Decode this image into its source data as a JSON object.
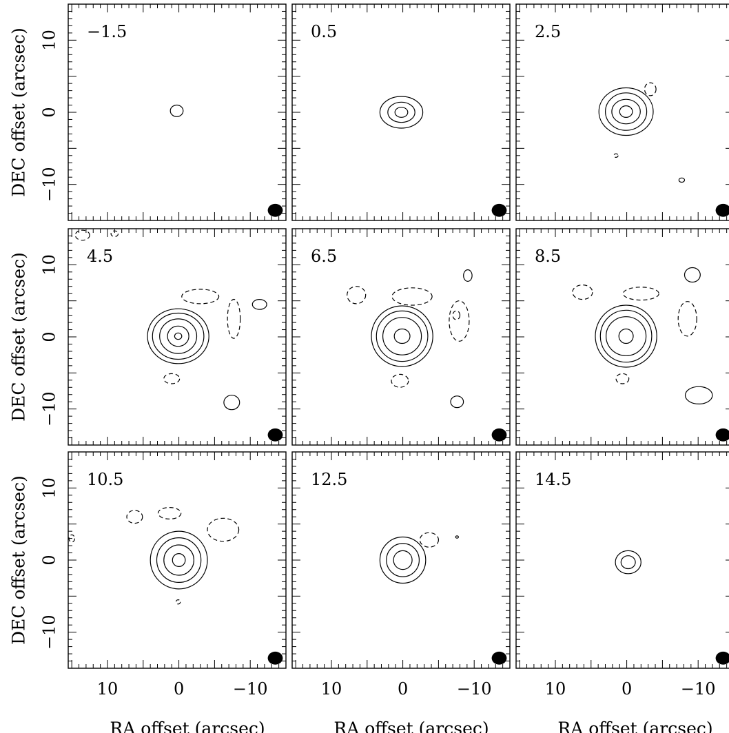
{
  "chart_data": {
    "type": "contour-channel-map",
    "xlabel": "RA offset (arcsec)",
    "ylabel": "DEC offset (arcsec)",
    "xlim": [
      15.5,
      -15
    ],
    "ylim": [
      -15,
      15
    ],
    "xticks": [
      10,
      0,
      -10
    ],
    "yticks": [
      10,
      0,
      -10
    ],
    "tick_labels_x": [
      "10",
      "0",
      "−10"
    ],
    "tick_labels_y": [
      "10",
      "0",
      "−10"
    ],
    "beam": {
      "x": -13.5,
      "y": -13.6,
      "major": 2.1,
      "minor": 1.8
    },
    "panels": [
      {
        "label": "−1.5",
        "contours": [
          {
            "x": 0.3,
            "y": 0.2,
            "rx": 0.9,
            "ry": 0.8,
            "level": "positive"
          }
        ]
      },
      {
        "label": "0.5",
        "contours": [
          {
            "x": 0.2,
            "y": 0.0,
            "rx": 3.0,
            "ry": 2.2,
            "level": "positive"
          },
          {
            "x": 0.2,
            "y": 0.0,
            "rx": 1.9,
            "ry": 1.4,
            "level": "positive"
          },
          {
            "x": 0.2,
            "y": 0.0,
            "rx": 0.9,
            "ry": 0.7,
            "level": "positive"
          }
        ]
      },
      {
        "label": "2.5",
        "contours": [
          {
            "x": 0.1,
            "y": 0.1,
            "rx": 3.8,
            "ry": 3.3,
            "level": "positive"
          },
          {
            "x": 0.1,
            "y": 0.1,
            "rx": 2.9,
            "ry": 2.6,
            "level": "positive"
          },
          {
            "x": 0.1,
            "y": 0.1,
            "rx": 2.0,
            "ry": 1.7,
            "level": "positive"
          },
          {
            "x": 0.1,
            "y": 0.1,
            "rx": 0.9,
            "ry": 0.8,
            "level": "positive"
          },
          {
            "x": -3.3,
            "y": 3.2,
            "rx": 0.8,
            "ry": 0.9,
            "level": "negative"
          },
          {
            "x": 1.5,
            "y": -6.0,
            "rx": 0.3,
            "ry": 0.25,
            "level": "negative"
          },
          {
            "x": -7.7,
            "y": -9.4,
            "rx": 0.4,
            "ry": 0.3,
            "level": "positive"
          }
        ]
      },
      {
        "label": "4.5",
        "contours": [
          {
            "x": 0.1,
            "y": 0.1,
            "rx": 4.3,
            "ry": 3.8,
            "level": "positive"
          },
          {
            "x": 0.1,
            "y": 0.1,
            "rx": 3.6,
            "ry": 3.2,
            "level": "positive"
          },
          {
            "x": 0.1,
            "y": 0.1,
            "rx": 2.6,
            "ry": 2.4,
            "level": "positive"
          },
          {
            "x": 0.1,
            "y": 0.1,
            "rx": 1.5,
            "ry": 1.4,
            "level": "positive"
          },
          {
            "x": 0.1,
            "y": 0.1,
            "rx": 0.5,
            "ry": 0.45,
            "level": "positive"
          },
          {
            "x": -3.0,
            "y": 5.6,
            "rx": 2.6,
            "ry": 1.0,
            "level": "negative"
          },
          {
            "x": -7.7,
            "y": 2.5,
            "rx": 0.9,
            "ry": 2.7,
            "level": "negative"
          },
          {
            "x": 1.0,
            "y": -5.8,
            "rx": 1.1,
            "ry": 0.7,
            "level": "negative"
          },
          {
            "x": -11.3,
            "y": 4.5,
            "rx": 1.0,
            "ry": 0.7,
            "level": "positive"
          },
          {
            "x": -7.4,
            "y": -9.1,
            "rx": 1.1,
            "ry": 1.0,
            "level": "positive"
          },
          {
            "x": 13.5,
            "y": 14.1,
            "rx": 1.0,
            "ry": 0.7,
            "level": "negative"
          },
          {
            "x": 9.0,
            "y": 14.3,
            "rx": 0.5,
            "ry": 0.4,
            "level": "negative"
          }
        ]
      },
      {
        "label": "6.5",
        "contours": [
          {
            "x": 0.1,
            "y": 0.1,
            "rx": 4.3,
            "ry": 4.2,
            "level": "positive"
          },
          {
            "x": 0.1,
            "y": 0.1,
            "rx": 3.6,
            "ry": 3.5,
            "level": "positive"
          },
          {
            "x": 0.1,
            "y": 0.1,
            "rx": 2.7,
            "ry": 2.6,
            "level": "positive"
          },
          {
            "x": 0.1,
            "y": 0.1,
            "rx": 1.1,
            "ry": 1.0,
            "level": "positive"
          },
          {
            "x": -1.3,
            "y": 5.6,
            "rx": 2.8,
            "ry": 1.2,
            "level": "negative"
          },
          {
            "x": 6.5,
            "y": 5.8,
            "rx": 1.3,
            "ry": 1.2,
            "level": "negative"
          },
          {
            "x": -7.9,
            "y": 2.2,
            "rx": 1.4,
            "ry": 2.8,
            "level": "negative"
          },
          {
            "x": -7.5,
            "y": 3.0,
            "rx": 0.5,
            "ry": 0.6,
            "level": "negative"
          },
          {
            "x": 0.4,
            "y": -6.1,
            "rx": 1.2,
            "ry": 0.9,
            "level": "negative"
          },
          {
            "x": -9.1,
            "y": 8.5,
            "rx": 0.6,
            "ry": 0.8,
            "level": "positive"
          },
          {
            "x": -7.6,
            "y": -9.0,
            "rx": 0.9,
            "ry": 0.8,
            "level": "positive"
          }
        ]
      },
      {
        "label": "8.5",
        "contours": [
          {
            "x": 0.1,
            "y": 0.1,
            "rx": 4.3,
            "ry": 4.3,
            "level": "positive"
          },
          {
            "x": 0.1,
            "y": 0.1,
            "rx": 3.6,
            "ry": 3.6,
            "level": "positive"
          },
          {
            "x": 0.1,
            "y": 0.1,
            "rx": 2.8,
            "ry": 2.7,
            "level": "positive"
          },
          {
            "x": 0.1,
            "y": 0.1,
            "rx": 1.0,
            "ry": 1.0,
            "level": "positive"
          },
          {
            "x": -2.0,
            "y": 6.0,
            "rx": 2.5,
            "ry": 0.9,
            "level": "negative"
          },
          {
            "x": 6.2,
            "y": 6.2,
            "rx": 1.4,
            "ry": 1.0,
            "level": "negative"
          },
          {
            "x": -8.5,
            "y": 2.5,
            "rx": 1.3,
            "ry": 2.4,
            "level": "negative"
          },
          {
            "x": 0.6,
            "y": -5.8,
            "rx": 0.9,
            "ry": 0.7,
            "level": "negative"
          },
          {
            "x": -9.2,
            "y": 8.6,
            "rx": 1.1,
            "ry": 1.0,
            "level": "positive"
          },
          {
            "x": -10.1,
            "y": -8.1,
            "rx": 1.9,
            "ry": 1.2,
            "level": "positive"
          }
        ]
      },
      {
        "label": "10.5",
        "contours": [
          {
            "x": 0.0,
            "y": 0.0,
            "rx": 4.0,
            "ry": 4.0,
            "level": "positive"
          },
          {
            "x": 0.0,
            "y": 0.0,
            "rx": 3.1,
            "ry": 3.1,
            "level": "positive"
          },
          {
            "x": 0.0,
            "y": 0.0,
            "rx": 2.1,
            "ry": 2.1,
            "level": "positive"
          },
          {
            "x": 0.0,
            "y": 0.0,
            "rx": 0.9,
            "ry": 0.9,
            "level": "positive"
          },
          {
            "x": 6.2,
            "y": 6.0,
            "rx": 1.1,
            "ry": 0.9,
            "level": "negative"
          },
          {
            "x": 1.3,
            "y": 6.5,
            "rx": 1.6,
            "ry": 0.8,
            "level": "negative"
          },
          {
            "x": -6.2,
            "y": 4.2,
            "rx": 2.2,
            "ry": 1.6,
            "level": "negative"
          },
          {
            "x": 0.1,
            "y": -5.8,
            "rx": 0.3,
            "ry": 0.3,
            "level": "negative"
          },
          {
            "x": 15.0,
            "y": 3.0,
            "rx": 0.4,
            "ry": 0.5,
            "level": "negative"
          }
        ]
      },
      {
        "label": "12.5",
        "contours": [
          {
            "x": 0.0,
            "y": 0.0,
            "rx": 3.2,
            "ry": 3.2,
            "level": "positive"
          },
          {
            "x": 0.0,
            "y": 0.0,
            "rx": 2.3,
            "ry": 2.3,
            "level": "positive"
          },
          {
            "x": 0.0,
            "y": 0.0,
            "rx": 1.3,
            "ry": 1.3,
            "level": "positive"
          },
          {
            "x": -3.7,
            "y": 2.8,
            "rx": 1.3,
            "ry": 1.0,
            "level": "negative"
          },
          {
            "x": -7.6,
            "y": 3.2,
            "rx": 0.2,
            "ry": 0.15,
            "level": "positive"
          }
        ]
      },
      {
        "label": "14.5",
        "contours": [
          {
            "x": -0.2,
            "y": -0.3,
            "rx": 1.8,
            "ry": 1.6,
            "level": "positive"
          },
          {
            "x": -0.2,
            "y": -0.3,
            "rx": 1.0,
            "ry": 0.9,
            "level": "positive"
          }
        ]
      }
    ]
  }
}
